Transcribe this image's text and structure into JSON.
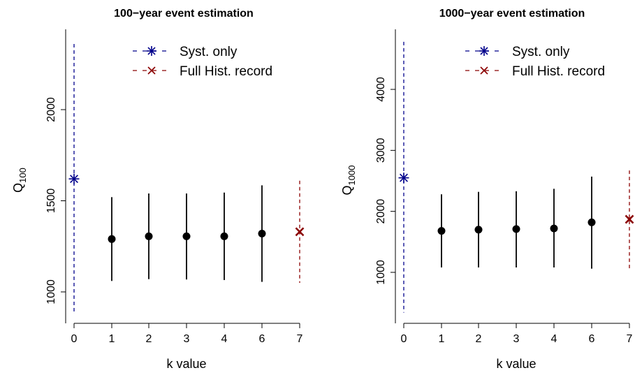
{
  "chart_data": [
    {
      "type": "scatter",
      "title": "100−year event estimation",
      "xlabel": "k value",
      "ylabel": "Q",
      "ylabel_sub": "100",
      "categories": [
        "0",
        "1",
        "2",
        "3",
        "4",
        "6",
        "7"
      ],
      "yticks": [
        1000,
        1500,
        2000
      ],
      "ylim": [
        870,
        2390
      ],
      "legend_position": "top-right",
      "legend": [
        {
          "label": "Syst. only",
          "color": "#00008B",
          "marker": "asterisk",
          "line": "dashed"
        },
        {
          "label": "Full Hist. record",
          "color": "#8B0000",
          "marker": "cross",
          "line": "dashed"
        }
      ],
      "series": [
        {
          "name": "Syst. only",
          "color": "#00008B",
          "marker": "asterisk",
          "points": [
            {
              "x": "0",
              "y": 1620,
              "low": 890,
              "high": 2360
            }
          ]
        },
        {
          "name": "",
          "color": "#000000",
          "marker": "dot",
          "points": [
            {
              "x": "1",
              "y": 1290,
              "low": 1060,
              "high": 1520
            },
            {
              "x": "2",
              "y": 1305,
              "low": 1070,
              "high": 1540
            },
            {
              "x": "3",
              "y": 1305,
              "low": 1068,
              "high": 1540
            },
            {
              "x": "4",
              "y": 1305,
              "low": 1065,
              "high": 1545
            },
            {
              "x": "6",
              "y": 1320,
              "low": 1055,
              "high": 1585
            }
          ]
        },
        {
          "name": "Full Hist. record",
          "color": "#8B0000",
          "marker": "cross",
          "points": [
            {
              "x": "7",
              "y": 1330,
              "low": 1050,
              "high": 1610
            }
          ]
        }
      ]
    },
    {
      "type": "scatter",
      "title": "1000−year event estimation",
      "xlabel": "k value",
      "ylabel": "Q",
      "ylabel_sub": "1000",
      "categories": [
        "0",
        "1",
        "2",
        "3",
        "4",
        "6",
        "7"
      ],
      "yticks": [
        1000,
        2000,
        3000,
        4000
      ],
      "ylim": [
        300,
        4900
      ],
      "legend_position": "top-right",
      "legend": [
        {
          "label": "Syst. only",
          "color": "#00008B",
          "marker": "asterisk",
          "line": "dashed"
        },
        {
          "label": "Full Hist. record",
          "color": "#8B0000",
          "marker": "cross",
          "line": "dashed"
        }
      ],
      "series": [
        {
          "name": "Syst. only",
          "color": "#00008B",
          "marker": "asterisk",
          "points": [
            {
              "x": "0",
              "y": 2550,
              "low": 340,
              "high": 4780
            }
          ]
        },
        {
          "name": "",
          "color": "#000000",
          "marker": "dot",
          "points": [
            {
              "x": "1",
              "y": 1680,
              "low": 1080,
              "high": 2280
            },
            {
              "x": "2",
              "y": 1700,
              "low": 1080,
              "high": 2320
            },
            {
              "x": "3",
              "y": 1710,
              "low": 1080,
              "high": 2330
            },
            {
              "x": "4",
              "y": 1720,
              "low": 1080,
              "high": 2370
            },
            {
              "x": "6",
              "y": 1820,
              "low": 1060,
              "high": 2570
            }
          ]
        },
        {
          "name": "Full Hist. record",
          "color": "#8B0000",
          "marker": "cross",
          "points": [
            {
              "x": "7",
              "y": 1870,
              "low": 1030,
              "high": 2670
            }
          ]
        }
      ]
    }
  ]
}
